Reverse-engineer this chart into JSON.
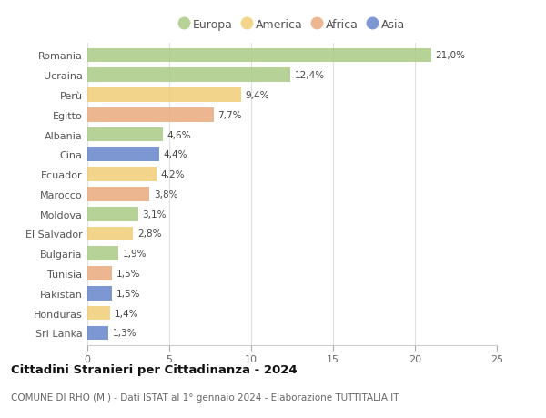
{
  "categories": [
    "Romania",
    "Ucraina",
    "Perù",
    "Egitto",
    "Albania",
    "Cina",
    "Ecuador",
    "Marocco",
    "Moldova",
    "El Salvador",
    "Bulgaria",
    "Tunisia",
    "Pakistan",
    "Honduras",
    "Sri Lanka"
  ],
  "values": [
    21.0,
    12.4,
    9.4,
    7.7,
    4.6,
    4.4,
    4.2,
    3.8,
    3.1,
    2.8,
    1.9,
    1.5,
    1.5,
    1.4,
    1.3
  ],
  "labels": [
    "21,0%",
    "12,4%",
    "9,4%",
    "7,7%",
    "4,6%",
    "4,4%",
    "4,2%",
    "3,8%",
    "3,1%",
    "2,8%",
    "1,9%",
    "1,5%",
    "1,5%",
    "1,4%",
    "1,3%"
  ],
  "continents": [
    "Europa",
    "Europa",
    "America",
    "Africa",
    "Europa",
    "Asia",
    "America",
    "Africa",
    "Europa",
    "America",
    "Europa",
    "Africa",
    "Asia",
    "America",
    "Asia"
  ],
  "continent_colors": {
    "Europa": "#a8c880",
    "America": "#f0cc70",
    "Africa": "#e8a878",
    "Asia": "#6080c8"
  },
  "legend_order": [
    "Europa",
    "America",
    "Africa",
    "Asia"
  ],
  "title": "Cittadini Stranieri per Cittadinanza - 2024",
  "subtitle": "COMUNE DI RHO (MI) - Dati ISTAT al 1° gennaio 2024 - Elaborazione TUTTITALIA.IT",
  "xlim": [
    0,
    25
  ],
  "xticks": [
    0,
    5,
    10,
    15,
    20,
    25
  ],
  "background_color": "#ffffff",
  "grid_color": "#e0e0e0",
  "bar_height": 0.72,
  "label_fontsize": 7.5,
  "ytick_fontsize": 8.0,
  "xtick_fontsize": 8.0,
  "title_fontsize": 9.5,
  "subtitle_fontsize": 7.5,
  "legend_fontsize": 9.0
}
